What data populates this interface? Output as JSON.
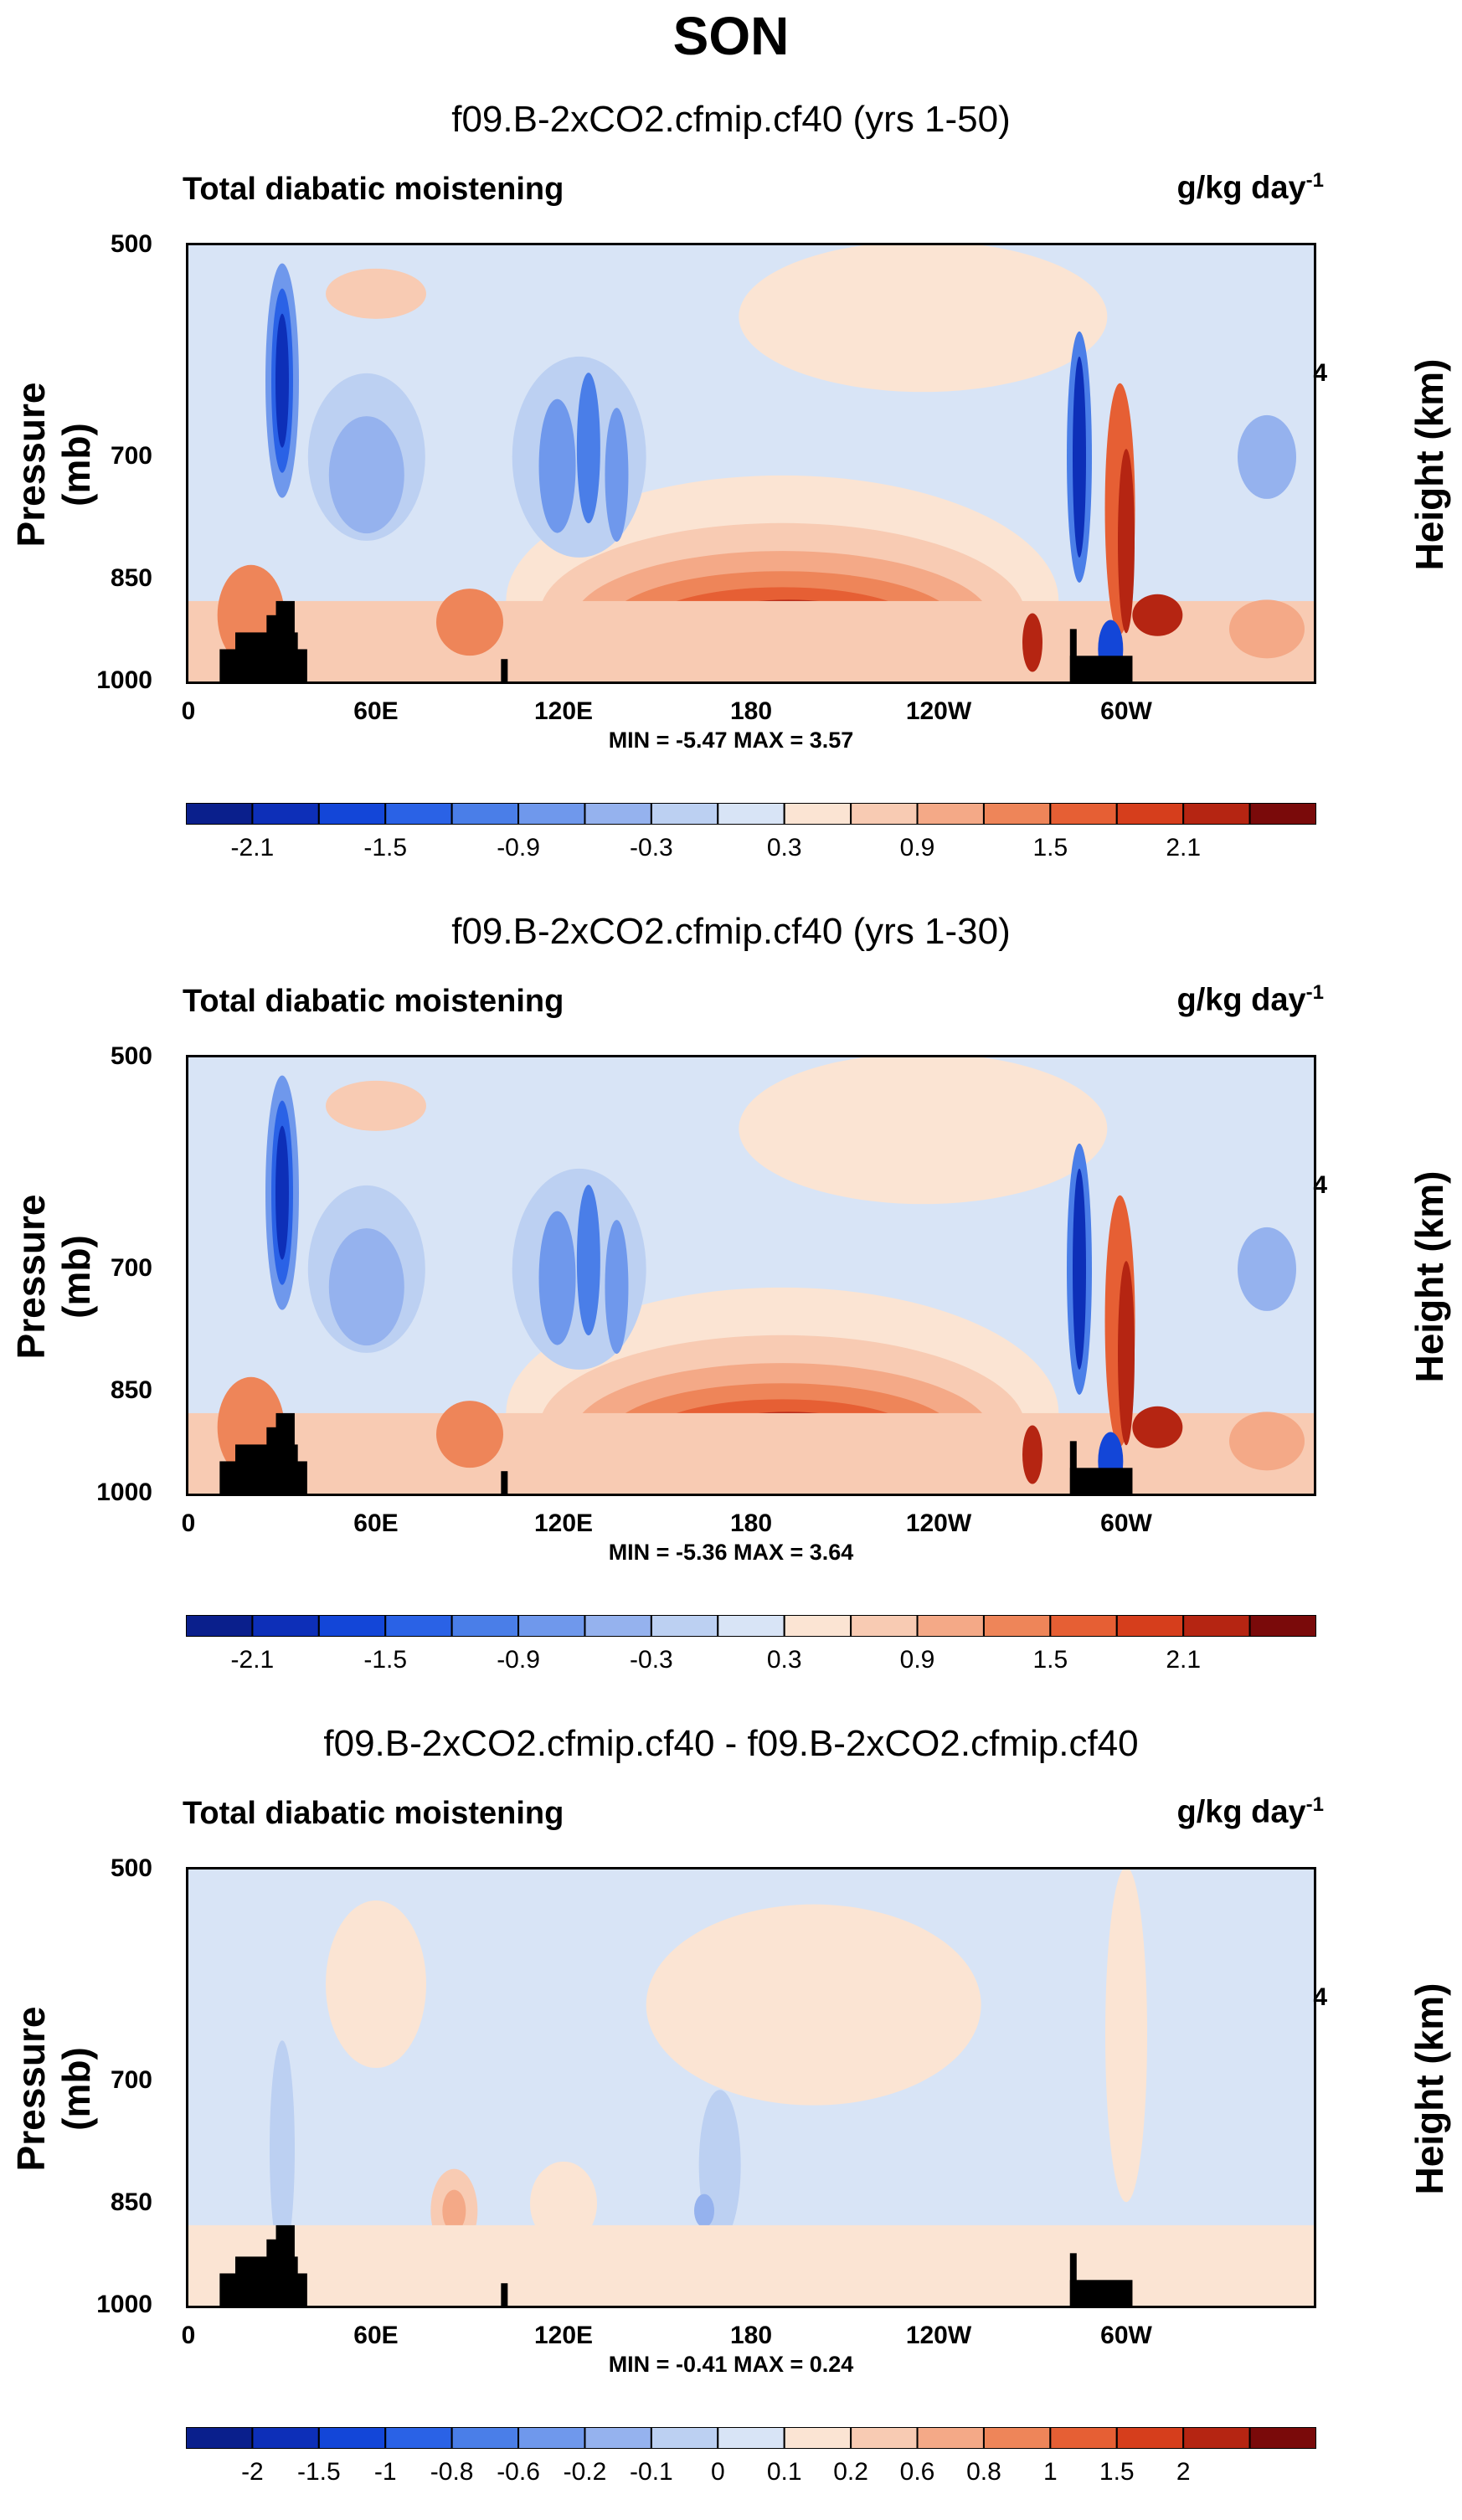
{
  "page_title": "SON",
  "chart_data": [
    {
      "type": "heatmap",
      "title": "f09.B-2xCO2.cfmip.cf40 (yrs 1-50)",
      "left_label": "Total diabatic moistening",
      "units_base": "g/kg day",
      "units_exp": "-1",
      "ylabel": "Pressure (mb)",
      "ylabel_right": "Height (km)",
      "yticks": [
        "500",
        "700",
        "850",
        "1000"
      ],
      "yticks_right": [
        "4"
      ],
      "xticks": [
        "0",
        "60E",
        "120E",
        "180",
        "120W",
        "60W"
      ],
      "ylim": [
        1000,
        500
      ],
      "stats": "MIN = -5.47 MAX = 3.57",
      "colorbar_labels": [
        "-2.1",
        "-1.5",
        "-0.9",
        "-0.3",
        "0.3",
        "0.9",
        "1.5",
        "2.1"
      ]
    },
    {
      "type": "heatmap",
      "title": "f09.B-2xCO2.cfmip.cf40 (yrs 1-30)",
      "left_label": "Total diabatic moistening",
      "units_base": "g/kg day",
      "units_exp": "-1",
      "ylabel": "Pressure (mb)",
      "ylabel_right": "Height (km)",
      "yticks": [
        "500",
        "700",
        "850",
        "1000"
      ],
      "yticks_right": [
        "4"
      ],
      "xticks": [
        "0",
        "60E",
        "120E",
        "180",
        "120W",
        "60W"
      ],
      "ylim": [
        1000,
        500
      ],
      "stats": "MIN = -5.36 MAX = 3.64",
      "colorbar_labels": [
        "-2.1",
        "-1.5",
        "-0.9",
        "-0.3",
        "0.3",
        "0.9",
        "1.5",
        "2.1"
      ]
    },
    {
      "type": "heatmap",
      "title": "f09.B-2xCO2.cfmip.cf40 - f09.B-2xCO2.cfmip.cf40",
      "left_label": "Total diabatic moistening",
      "units_base": "g/kg day",
      "units_exp": "-1",
      "ylabel": "Pressure (mb)",
      "ylabel_right": "Height (km)",
      "yticks": [
        "500",
        "700",
        "850",
        "1000"
      ],
      "yticks_right": [
        "4"
      ],
      "xticks": [
        "0",
        "60E",
        "120E",
        "180",
        "120W",
        "60W"
      ],
      "ylim": [
        1000,
        500
      ],
      "stats": "MIN = -0.41 MAX = 0.24",
      "colorbar_labels": [
        "-2",
        "-1.5",
        "-1",
        "-0.8",
        "-0.6",
        "-0.2",
        "-0.1",
        "0",
        "0.1",
        "0.2",
        "0.6",
        "0.8",
        "1",
        "1.5",
        "2"
      ]
    }
  ],
  "colorbar_colors": [
    "#0a1f8c",
    "#0d2fb8",
    "#1346d8",
    "#2a62e6",
    "#4a7ee8",
    "#6f98ec",
    "#95b2ee",
    "#bcd0f2",
    "#d8e4f6",
    "#fbe4d3",
    "#f8cbb3",
    "#f4a987",
    "#ee8559",
    "#e65f34",
    "#d63e1c",
    "#b52512",
    "#7a0a0a"
  ]
}
